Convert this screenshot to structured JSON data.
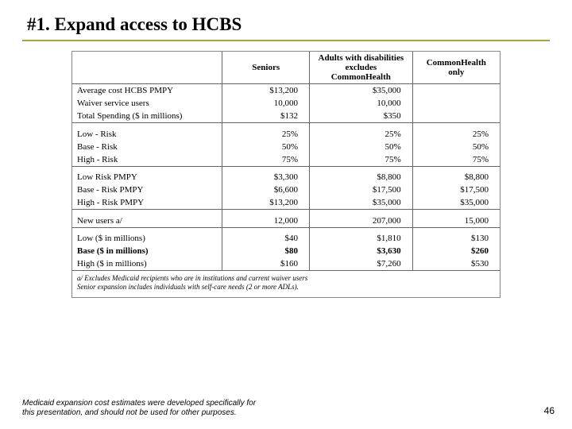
{
  "title": "#1.  Expand access to HCBS",
  "columns": [
    "Seniors",
    "Adults with disabilities excludes CommonHealth",
    "CommonHealth only"
  ],
  "sections": [
    {
      "rows": [
        {
          "label": "Average cost HCBS PMPY",
          "c1": "$13,200",
          "c2": "$35,000",
          "c3": ""
        },
        {
          "label": "Waiver service users",
          "c1": "10,000",
          "c2": "10,000",
          "c3": ""
        },
        {
          "label": "Total Spending  ($ in millions)",
          "c1": "$132",
          "c2": "$350",
          "c3": ""
        }
      ]
    },
    {
      "rows": [
        {
          "label": "Low - Risk",
          "c1": "25%",
          "c2": "25%",
          "c3": "25%"
        },
        {
          "label": "Base - Risk",
          "c1": "50%",
          "c2": "50%",
          "c3": "50%"
        },
        {
          "label": "High - Risk",
          "c1": "75%",
          "c2": "75%",
          "c3": "75%"
        }
      ]
    },
    {
      "rows": [
        {
          "label": "Low   Risk  PMPY",
          "c1": "$3,300",
          "c2": "$8,800",
          "c3": "$8,800"
        },
        {
          "label": "Base - Risk  PMPY",
          "c1": "$6,600",
          "c2": "$17,500",
          "c3": "$17,500"
        },
        {
          "label": "High - Risk  PMPY",
          "c1": "$13,200",
          "c2": "$35,000",
          "c3": "$35,000"
        }
      ]
    },
    {
      "rows": [
        {
          "label": "New users a/",
          "c1": "12,000",
          "c2": "207,000",
          "c3": "15,000"
        }
      ]
    },
    {
      "rows": [
        {
          "label": "Low ($ in millions)",
          "c1": "$40",
          "c2": "$1,810",
          "c3": "$130"
        },
        {
          "label": "Base ($ in millions)",
          "c1": "$80",
          "c2": "$3,630",
          "c3": "$260",
          "bold": true
        },
        {
          "label": "High ($ in millions)",
          "c1": "$160",
          "c2": "$7,260",
          "c3": "$530"
        }
      ]
    }
  ],
  "footnotes": [
    "a/ Excludes Medicaid recipients who are in institutions and current waiver users",
    "Senior expansion includes individuals with self-care needs (2 or more ADLs)."
  ],
  "disclaimer": "Medicaid expansion cost estimates were developed specifically for this presentation, and should not be used for other purposes.",
  "page": "46"
}
